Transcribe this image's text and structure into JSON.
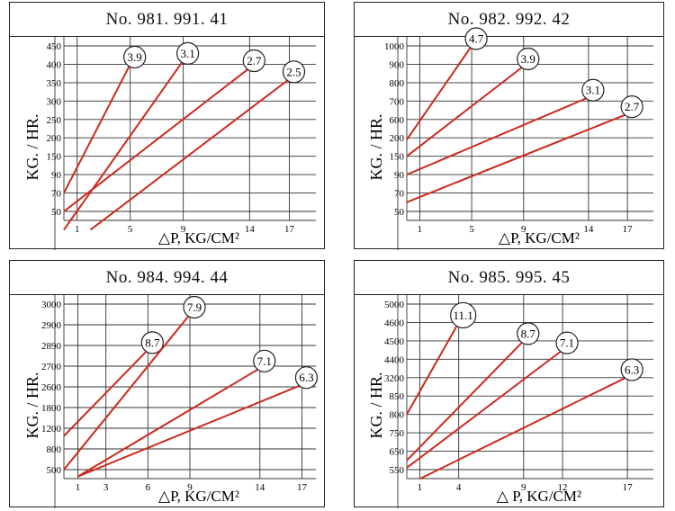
{
  "chart_data": [
    {
      "type": "line",
      "title": "No. 981. 991. 41",
      "ylabel": "KG. / HR.",
      "xlabel": "△P, KG/CM²",
      "x_ticks": [
        1,
        5,
        9,
        14,
        17
      ],
      "y_ticks": [
        50,
        70,
        90,
        150,
        200,
        250,
        300,
        350,
        400,
        450
      ],
      "xlim": [
        0,
        19
      ],
      "series": [
        {
          "name": "3.9",
          "x": [
            0,
            5
          ],
          "y": [
            70,
            400
          ]
        },
        {
          "name": "3.1",
          "x": [
            0,
            9
          ],
          "y": [
            30,
            410
          ]
        },
        {
          "name": "2.7",
          "x": [
            0,
            14
          ],
          "y": [
            50,
            390
          ]
        },
        {
          "name": "2.5",
          "x": [
            2,
            17
          ],
          "y": [
            30,
            360
          ]
        }
      ]
    },
    {
      "type": "line",
      "title": "No. 982. 992. 42",
      "ylabel": "KG. / HR.",
      "xlabel": "△P, KG/CM²",
      "x_ticks": [
        1,
        5,
        9,
        14,
        17
      ],
      "y_ticks": [
        50,
        70,
        90,
        150,
        200,
        600,
        700,
        800,
        900,
        1000
      ],
      "xlim": [
        0,
        19
      ],
      "series": [
        {
          "name": "4.7",
          "x": [
            0,
            5
          ],
          "y": [
            195,
            1000
          ]
        },
        {
          "name": "3.9",
          "x": [
            0,
            9
          ],
          "y": [
            150,
            890
          ]
        },
        {
          "name": "3.1",
          "x": [
            0,
            14
          ],
          "y": [
            90,
            720
          ]
        },
        {
          "name": "2.7",
          "x": [
            0,
            17
          ],
          "y": [
            60,
            630
          ]
        }
      ]
    },
    {
      "type": "line",
      "title": "No. 984. 994. 44",
      "ylabel": "KG. / HR.",
      "xlabel": "△P, KG/CM²",
      "x_ticks": [
        1,
        3,
        6,
        9,
        14,
        17
      ],
      "y_ticks": [
        500,
        800,
        1200,
        1800,
        2600,
        2700,
        2890,
        2900,
        3000
      ],
      "xlim": [
        0,
        18
      ],
      "series": [
        {
          "name": "8.7",
          "x": [
            0,
            6
          ],
          "y": [
            1050,
            2850
          ]
        },
        {
          "name": "7.9",
          "x": [
            0,
            9
          ],
          "y": [
            500,
            2950
          ]
        },
        {
          "name": "7.1",
          "x": [
            1,
            14
          ],
          "y": [
            400,
            2690
          ]
        },
        {
          "name": "6.3",
          "x": [
            1,
            17
          ],
          "y": [
            400,
            2610
          ]
        }
      ]
    },
    {
      "type": "line",
      "title": "No. 985.  995.  45",
      "ylabel": "KG. / HR.",
      "xlabel": "△  P, KG/CM²",
      "x_ticks": [
        1,
        4,
        9,
        12,
        17
      ],
      "y_ticks": [
        550,
        650,
        750,
        800,
        850,
        3200,
        4400,
        4500,
        4600,
        5000
      ],
      "xlim": [
        0,
        19
      ],
      "series": [
        {
          "name": "11.1",
          "x": [
            0,
            4
          ],
          "y": [
            800,
            4600
          ]
        },
        {
          "name": "8.7",
          "x": [
            0,
            9
          ],
          "y": [
            600,
            4500
          ]
        },
        {
          "name": "7.1",
          "x": [
            0,
            12
          ],
          "y": [
            560,
            4450
          ]
        },
        {
          "name": "6.3",
          "x": [
            1,
            17
          ],
          "y": [
            500,
            3250
          ]
        }
      ]
    }
  ]
}
